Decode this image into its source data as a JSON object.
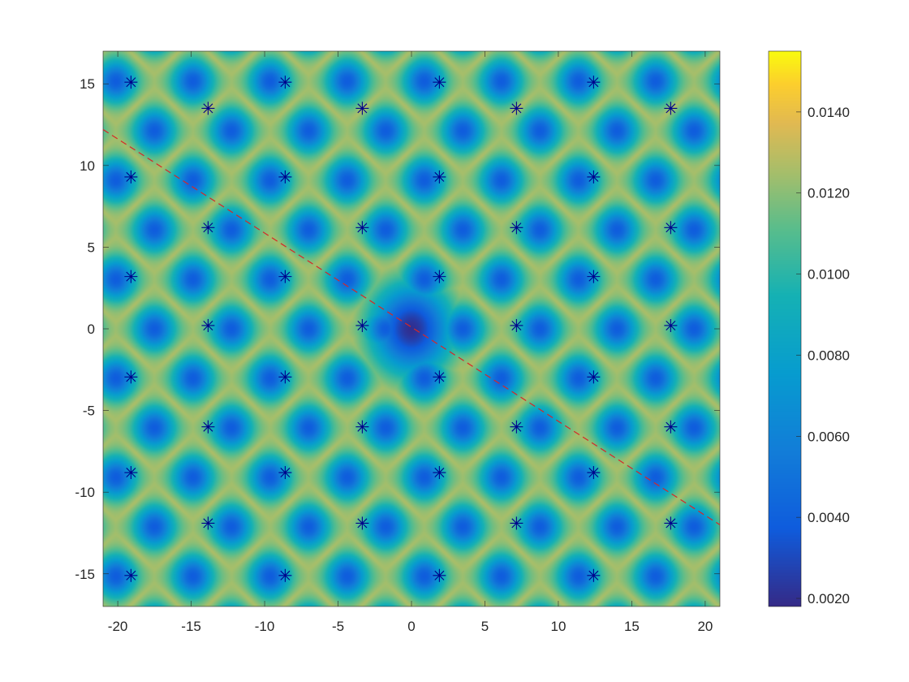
{
  "chart_data": {
    "type": "heatmap",
    "title": "",
    "xlabel": "",
    "ylabel": "",
    "xlim": [
      -21,
      21
    ],
    "ylim": [
      -17,
      17
    ],
    "x_ticks": [
      "-20",
      "-15",
      "-10",
      "-5",
      "0",
      "5",
      "10",
      "15",
      "20"
    ],
    "y_ticks": [
      "15",
      "10",
      "5",
      "0",
      "-5",
      "-10",
      "-15"
    ],
    "colorbar": {
      "colormap": "parula",
      "range": [
        0.0018,
        0.0155
      ],
      "tick_values": [
        0.002,
        0.004,
        0.006,
        0.008,
        0.01,
        0.012,
        0.014
      ],
      "tick_labels": [
        "0.0020",
        "0.0040",
        "0.0060",
        "0.0080",
        "0.0100",
        "0.0120",
        "0.0140"
      ]
    },
    "lattice": {
      "description": "triangular lattice, spacing ~5.25",
      "a1": [
        5.25,
        0
      ],
      "a2": [
        2.625,
        3.0311
      ]
    },
    "central_minimum": {
      "x": 0,
      "y": 0,
      "value": 0.002
    },
    "marker_series": {
      "marker": "asterisk",
      "color": "#00008b",
      "points": [
        [
          -19.1,
          15.1
        ],
        [
          -8.6,
          15.1
        ],
        [
          1.9,
          15.1
        ],
        [
          12.4,
          15.1
        ],
        [
          -13.85,
          13.5
        ],
        [
          -3.35,
          13.5
        ],
        [
          7.15,
          13.5
        ],
        [
          17.65,
          13.5
        ],
        [
          -19.1,
          9.3
        ],
        [
          -8.6,
          9.3
        ],
        [
          1.9,
          9.3
        ],
        [
          12.4,
          9.3
        ],
        [
          -13.85,
          6.2
        ],
        [
          -3.35,
          6.2
        ],
        [
          7.15,
          6.2
        ],
        [
          17.65,
          6.2
        ],
        [
          -19.1,
          3.2
        ],
        [
          -8.6,
          3.2
        ],
        [
          1.9,
          3.2
        ],
        [
          12.4,
          3.2
        ],
        [
          -13.85,
          0.2
        ],
        [
          -3.35,
          0.2
        ],
        [
          7.15,
          0.2
        ],
        [
          17.65,
          0.2
        ],
        [
          -19.1,
          -2.95
        ],
        [
          -8.6,
          -2.95
        ],
        [
          1.9,
          -2.95
        ],
        [
          12.4,
          -2.95
        ],
        [
          -13.85,
          -6.0
        ],
        [
          -3.35,
          -6.0
        ],
        [
          7.15,
          -6.0
        ],
        [
          17.65,
          -6.0
        ],
        [
          -19.1,
          -8.8
        ],
        [
          -8.6,
          -8.8
        ],
        [
          1.9,
          -8.8
        ],
        [
          12.4,
          -8.8
        ],
        [
          -13.85,
          -11.9
        ],
        [
          -3.35,
          -11.9
        ],
        [
          7.15,
          -11.9
        ],
        [
          17.65,
          -11.9
        ],
        [
          -19.1,
          -15.1
        ],
        [
          -8.6,
          -15.1
        ],
        [
          1.9,
          -15.1
        ],
        [
          12.4,
          -15.1
        ]
      ]
    },
    "line_series": {
      "style": "dashed",
      "color": "#d62728",
      "x": [
        -21,
        21
      ],
      "y": [
        12.2,
        -12.0
      ]
    }
  }
}
